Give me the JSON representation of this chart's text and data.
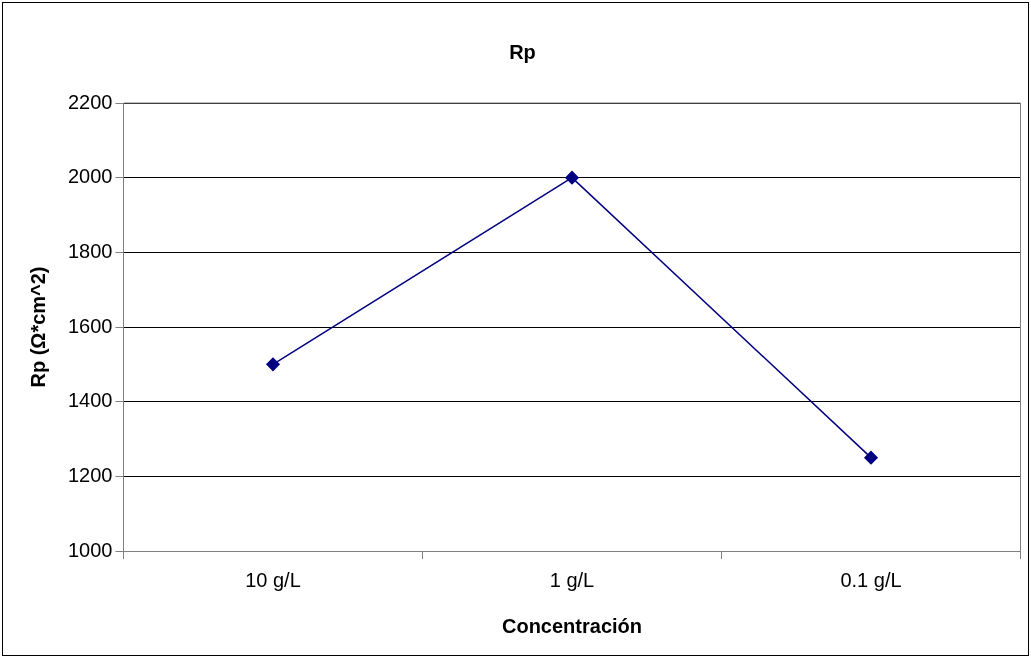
{
  "chart_data": {
    "type": "line",
    "title": "Rp",
    "xlabel": "Concentración",
    "ylabel": "Rp (Ω*cm^2)",
    "categories": [
      "10 g/L",
      "1 g/L",
      "0.1 g/L"
    ],
    "series": [
      {
        "color": "#000080",
        "values": [
          1500,
          2000,
          1250
        ]
      }
    ],
    "ylim": [
      1000,
      2200
    ],
    "yticks": [
      1000,
      1200,
      1400,
      1600,
      1800,
      2000,
      2200
    ],
    "grid": "y",
    "legend": false,
    "marker": "diamond",
    "line_style": "solid"
  }
}
